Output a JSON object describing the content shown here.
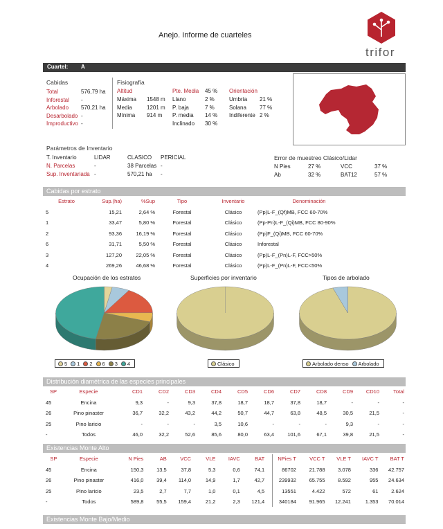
{
  "header": {
    "title": "Anejo. Informe de cuarteles",
    "logo_text": "trifor"
  },
  "cuartel": {
    "label": "Cuartel:",
    "value": "A"
  },
  "cabidas": {
    "heading": "Cabidas",
    "rows": [
      {
        "label": "Total",
        "value": "576,79 ha"
      },
      {
        "label": "Inforestal",
        "value": "-"
      },
      {
        "label": "Arbolado",
        "value": "570,21 ha"
      },
      {
        "label": "Desarbolado",
        "value": "-"
      },
      {
        "label": "Improductivo",
        "value": "-"
      }
    ]
  },
  "fisiografia": {
    "heading": "Fisiografía",
    "altitud": {
      "label": "Altitud",
      "rows": [
        {
          "k": "Máxima",
          "v": "1548 m"
        },
        {
          "k": "Media",
          "v": "1201 m"
        },
        {
          "k": "Mínima",
          "v": "914 m"
        }
      ]
    },
    "pendiente": {
      "label": "Pte. Media",
      "value": "45 %",
      "rows": [
        {
          "k": "Llano",
          "v": "2 %"
        },
        {
          "k": "P. baja",
          "v": "7 %"
        },
        {
          "k": "P. media",
          "v": "14 %"
        },
        {
          "k": "Inclinado",
          "v": "30 %"
        }
      ]
    },
    "orientacion": {
      "label": "Orientación",
      "rows": [
        {
          "k": "Umbría",
          "v": "21 %"
        },
        {
          "k": "Solana",
          "v": "77 %"
        },
        {
          "k": "Indiferente",
          "v": "2 %"
        }
      ]
    }
  },
  "parametros": {
    "heading": "Parámetros de Inventario",
    "headers": [
      "T. Inventario",
      "LIDAR",
      "CLASICO",
      "PERICIAL"
    ],
    "rows": [
      {
        "label": "N. Parcelas",
        "lidar": "-",
        "clasico": "38 Parcelas",
        "pericial": "-"
      },
      {
        "label": "Sup. Inventariada",
        "lidar": "-",
        "clasico": "570,21 ha",
        "pericial": "-"
      }
    ]
  },
  "error": {
    "heading": "Error de muestreo Clásico/Lidar",
    "rows": [
      {
        "k1": "N Pies",
        "v1": "27 %",
        "k2": "VCC",
        "v2": "37 %"
      },
      {
        "k1": "Ab",
        "v1": "32 %",
        "k2": "BAT12",
        "v2": "57 %"
      }
    ]
  },
  "estratos": {
    "section": "Cabidas por estrato",
    "headers": [
      "Estrato",
      "Sup.(ha)",
      "%Sup",
      "Tipo",
      "Inventario",
      "Denominación"
    ],
    "rows": [
      [
        "5",
        "15,21",
        "2,64 %",
        "Forestal",
        "Clásico",
        "(Pp)L-F_(Qf)MB, FCC 60-70%"
      ],
      [
        "1",
        "33,47",
        "5,80 %",
        "Forestal",
        "Clásico",
        "(Pp-Pn)L-F_(Qi)MB, FCC 80-90%"
      ],
      [
        "2",
        "93,36",
        "16,19 %",
        "Forestal",
        "Clásico",
        "(Pp)F_(Qi)MB, FCC 60-70%"
      ],
      [
        "6",
        "31,71",
        "5,50 %",
        "Forestal",
        "Clásico",
        "Inforestal"
      ],
      [
        "3",
        "127,20",
        "22,05 %",
        "Forestal",
        "Clásico",
        "(Pp)L-F_(Pn)L-F, FCC>50%"
      ],
      [
        "4",
        "269,26",
        "46,68 %",
        "Forestal",
        "Clásico",
        "(Pp)L-F_(Pn)L-F, FCC<50%"
      ]
    ]
  },
  "charts": {
    "ocupacion": {
      "title": "Ocupación de los estratos",
      "legend": [
        {
          "label": "5",
          "color": "#e3d59a"
        },
        {
          "label": "1",
          "color": "#a8c8dc"
        },
        {
          "label": "2",
          "color": "#dc5a40"
        },
        {
          "label": "6",
          "color": "#e8b850"
        },
        {
          "label": "3",
          "color": "#8c8048"
        },
        {
          "label": "4",
          "color": "#3fa89c"
        }
      ]
    },
    "superficies": {
      "title": "Superficies por inventario",
      "legend": [
        {
          "label": "Clásico",
          "color": "#d9cf90"
        }
      ]
    },
    "tipos": {
      "title": "Tipos de arbolado",
      "legend": [
        {
          "label": "Arbolado denso",
          "color": "#d9cf90"
        },
        {
          "label": "Arbolado",
          "color": "#a8c8dc"
        }
      ]
    }
  },
  "chart_data": [
    {
      "type": "pie",
      "title": "Ocupación de los estratos",
      "categories": [
        "5",
        "1",
        "2",
        "6",
        "3",
        "4"
      ],
      "values": [
        2.64,
        5.8,
        16.19,
        5.5,
        22.05,
        46.68
      ],
      "colors": [
        "#e3d59a",
        "#a8c8dc",
        "#dc5a40",
        "#e8b850",
        "#8c8048",
        "#3fa89c"
      ],
      "legend_placement": "bottom"
    },
    {
      "type": "pie",
      "title": "Superficies por inventario",
      "categories": [
        "Clásico"
      ],
      "values": [
        100
      ],
      "colors": [
        "#d9cf90"
      ],
      "legend_placement": "bottom"
    },
    {
      "type": "pie",
      "title": "Tipos de arbolado",
      "categories": [
        "Arbolado denso",
        "Arbolado"
      ],
      "values": [
        95,
        5
      ],
      "colors": [
        "#d9cf90",
        "#a8c8dc"
      ],
      "legend_placement": "bottom"
    }
  ],
  "diametrica": {
    "section": "Distribución diamétrica de las especies principales",
    "headers": [
      "SP",
      "Especie",
      "CD1",
      "CD2",
      "CD3",
      "CD4",
      "CD5",
      "CD6",
      "CD7",
      "CD8",
      "CD9",
      "CD10",
      "Total"
    ],
    "rows": [
      [
        "45",
        "Encina",
        "9,3",
        "-",
        "9,3",
        "37,8",
        "18,7",
        "18,7",
        "37,8",
        "18,7",
        "-",
        "-",
        "-"
      ],
      [
        "26",
        "Pino pinaster",
        "36,7",
        "32,2",
        "43,2",
        "44,2",
        "50,7",
        "44,7",
        "63,8",
        "48,5",
        "30,5",
        "21,5",
        "-"
      ],
      [
        "25",
        "Pino laricio",
        "-",
        "-",
        "-",
        "3,5",
        "10,6",
        "-",
        "-",
        "-",
        "9,3",
        "-",
        "-"
      ],
      [
        "-",
        "Todos",
        "46,0",
        "32,2",
        "52,6",
        "85,6",
        "80,0",
        "63,4",
        "101,6",
        "67,1",
        "39,8",
        "21,5",
        "-"
      ]
    ]
  },
  "existencias": {
    "section": "Existencias Monte Alto",
    "headers": [
      "SP",
      "Especie",
      "N Pies",
      "AB",
      "VCC",
      "VLE",
      "IAVC",
      "BAT",
      "NPies T",
      "VCC T",
      "VLE T",
      "IAVC T",
      "BAT T"
    ],
    "rows": [
      [
        "45",
        "Encina",
        "150,3",
        "13,5",
        "37,8",
        "5,3",
        "0,6",
        "74,1",
        "86702",
        "21.788",
        "3.078",
        "336",
        "42.757"
      ],
      [
        "26",
        "Pino pinaster",
        "416,0",
        "39,4",
        "114,0",
        "14,9",
        "1,7",
        "42,7",
        "239932",
        "65.755",
        "8.592",
        "955",
        "24.634"
      ],
      [
        "25",
        "Pino laricio",
        "23,5",
        "2,7",
        "7,7",
        "1,0",
        "0,1",
        "4,5",
        "13551",
        "4.422",
        "572",
        "61",
        "2.624"
      ],
      [
        "-",
        "Todos",
        "589,8",
        "55,5",
        "159,4",
        "21,2",
        "2,3",
        "121,4",
        "340184",
        "91.965",
        "12.241",
        "1.353",
        "70.014"
      ]
    ]
  },
  "bajo": {
    "section": "Existencias Monte Bajo/Medio"
  }
}
